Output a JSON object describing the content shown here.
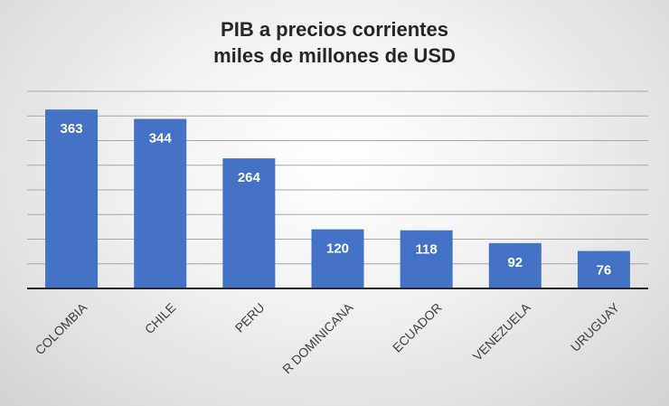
{
  "chart_data": {
    "type": "bar",
    "title_lines": [
      "PIB a precios corrientes",
      "miles de millones de USD"
    ],
    "categories": [
      "COLOMBIA",
      "CHILE",
      "PERU",
      "R DOMINICANA",
      "ECUADOR",
      "VENEZUELA",
      "URUGUAY"
    ],
    "values": [
      363,
      344,
      264,
      120,
      118,
      92,
      76
    ],
    "ylim": [
      0,
      400
    ],
    "grid": true,
    "legend": "none",
    "bar_color": "#4472c4",
    "label_color": "#ffffff",
    "category_label_rotation": "-45deg"
  }
}
